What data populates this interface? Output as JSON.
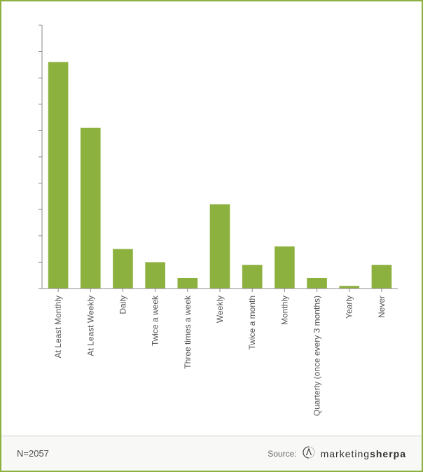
{
  "chart": {
    "type": "bar",
    "categories": [
      "At Least Monthly",
      "At Least Weekly",
      "Daily",
      "Twice a week",
      "Three times a week",
      "Weekly",
      "Twice a month",
      "Monthly",
      "Quarterly (once every 3 months)",
      "Yearly",
      "Never"
    ],
    "values": [
      86,
      61,
      15,
      10,
      4,
      32,
      9,
      16,
      4,
      1,
      9
    ],
    "bar_color": "#8db13f",
    "background_color": "#ffffff",
    "border_color": "#8db13f",
    "axis_color": "#888888",
    "tick_color": "#888888",
    "tick_mark_color": "#888888",
    "label_color": "#555555",
    "y": {
      "min": 0,
      "max": 100,
      "step": 10,
      "suffix": "%"
    },
    "bar_width_ratio": 0.62,
    "label_fontsize": 12
  },
  "footer": {
    "left": "N=2057",
    "source_label": "Source:",
    "logo_name": "marketingsherpa"
  }
}
